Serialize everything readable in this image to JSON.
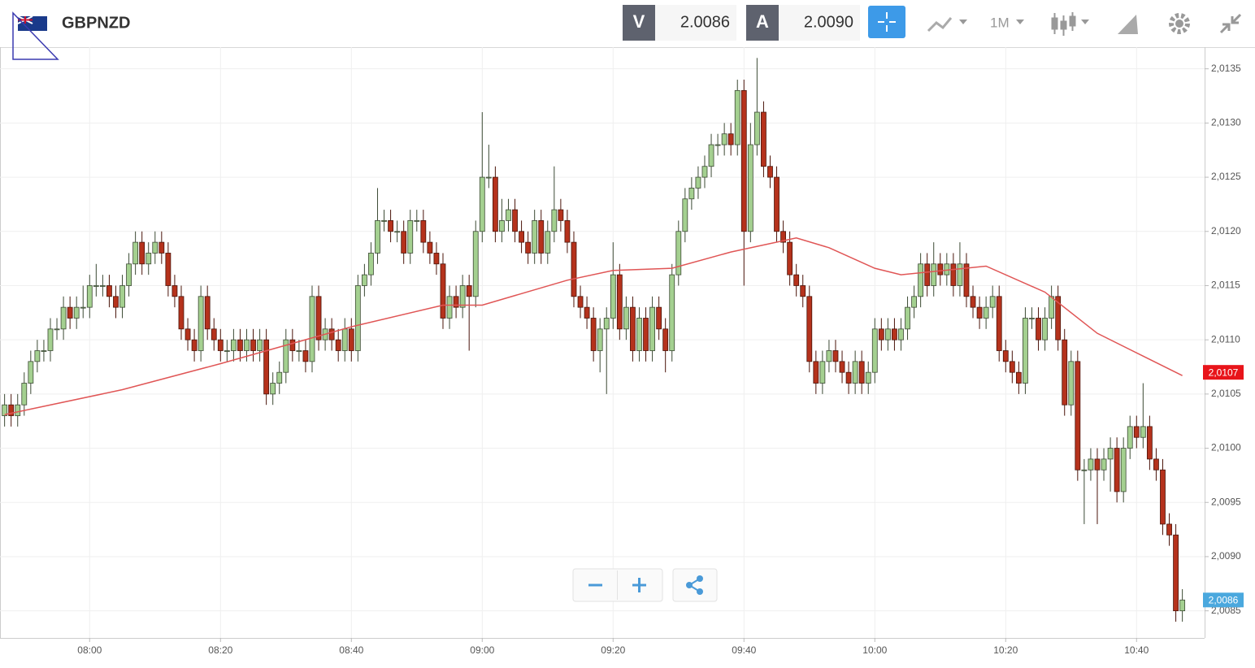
{
  "header": {
    "symbol": "GBPNZD",
    "sell": {
      "label": "V",
      "price": "2.0086"
    },
    "buy": {
      "label": "A",
      "price": "2.0090"
    },
    "timeframe": "1M"
  },
  "chart_data": {
    "type": "candlestick",
    "x": [
      467,
      468,
      469,
      470,
      471,
      472,
      473,
      474,
      475,
      476,
      477,
      478,
      479,
      480,
      481,
      482,
      483,
      484,
      485,
      486,
      487,
      488,
      489,
      490,
      491,
      492,
      493,
      494,
      495,
      496,
      497,
      498,
      499,
      500,
      501,
      502,
      503,
      504,
      505,
      506,
      507,
      508,
      509,
      510,
      511,
      512,
      513,
      514,
      515,
      516,
      517,
      518,
      519,
      520,
      521,
      522,
      523,
      524,
      525,
      526,
      527,
      528,
      529,
      530,
      531,
      532,
      533,
      534,
      535,
      536,
      537,
      538,
      539,
      540,
      541,
      542,
      543,
      544,
      545,
      546,
      547,
      548,
      549,
      550,
      551,
      552,
      553,
      554,
      555,
      556,
      557,
      558,
      559,
      560,
      561,
      562,
      563,
      564,
      565,
      566,
      567,
      568,
      569,
      570,
      571,
      572,
      573,
      574,
      575,
      576,
      577,
      578,
      579,
      580,
      581,
      582,
      583,
      584,
      585,
      586,
      587,
      588,
      589,
      590,
      591,
      592,
      593,
      594,
      595,
      596,
      597,
      598,
      599,
      600,
      601,
      602,
      603,
      604,
      605,
      606,
      607,
      608,
      609,
      610,
      611,
      612,
      613,
      614,
      615,
      616,
      617,
      618,
      619,
      620,
      621,
      622,
      623,
      624,
      625,
      626,
      627,
      628,
      629,
      630,
      631,
      632,
      633,
      634,
      635,
      636,
      637,
      638,
      639,
      640,
      641,
      642,
      643,
      644,
      645,
      646,
      647
    ],
    "open": [
      2.0103,
      2.0104,
      2.0103,
      2.0104,
      2.0106,
      2.0108,
      2.0109,
      2.0109,
      2.0111,
      2.0111,
      2.0113,
      2.0112,
      2.0113,
      2.0113,
      2.0115,
      2.0115,
      2.0115,
      2.0114,
      2.0113,
      2.0115,
      2.0117,
      2.0119,
      2.0117,
      2.0118,
      2.0119,
      2.0118,
      2.0115,
      2.0114,
      2.0111,
      2.011,
      2.0109,
      2.0114,
      2.0111,
      2.011,
      2.0109,
      2.0109,
      2.011,
      2.0109,
      2.011,
      2.0109,
      2.011,
      2.0105,
      2.0106,
      2.0107,
      2.011,
      2.0109,
      2.0109,
      2.0108,
      2.0114,
      2.011,
      2.0111,
      2.011,
      2.0109,
      2.0111,
      2.0109,
      2.0115,
      2.0116,
      2.0118,
      2.0121,
      2.0121,
      2.012,
      2.012,
      2.0118,
      2.0121,
      2.0121,
      2.0119,
      2.0118,
      2.0117,
      2.0112,
      2.0114,
      2.0113,
      2.0115,
      2.0114,
      2.012,
      2.0125,
      2.0125,
      2.012,
      2.0121,
      2.0122,
      2.012,
      2.0119,
      2.0118,
      2.0121,
      2.0118,
      2.012,
      2.0122,
      2.0121,
      2.0119,
      2.0114,
      2.0113,
      2.0112,
      2.0109,
      2.0111,
      2.0112,
      2.0116,
      2.0111,
      2.0113,
      2.0109,
      2.0112,
      2.0109,
      2.0113,
      2.0111,
      2.0109,
      2.0116,
      2.012,
      2.0123,
      2.0124,
      2.0125,
      2.0126,
      2.0128,
      2.0128,
      2.0129,
      2.0128,
      2.0133,
      2.012,
      2.0128,
      2.0131,
      2.0126,
      2.0125,
      2.012,
      2.0119,
      2.0116,
      2.0115,
      2.0114,
      2.0108,
      2.0106,
      2.0108,
      2.0109,
      2.0108,
      2.0107,
      2.0106,
      2.0108,
      2.0106,
      2.0107,
      2.0111,
      2.011,
      2.0111,
      2.011,
      2.0111,
      2.0113,
      2.0114,
      2.0117,
      2.0115,
      2.0117,
      2.0116,
      2.0117,
      2.0115,
      2.0117,
      2.0114,
      2.0113,
      2.0112,
      2.0113,
      2.0114,
      2.0109,
      2.0108,
      2.0107,
      2.0106,
      2.0112,
      2.0112,
      2.011,
      2.0112,
      2.0114,
      2.011,
      2.0104,
      2.0108,
      2.0098,
      2.0098,
      2.0099,
      2.0098,
      2.0099,
      2.01,
      2.0096,
      2.01,
      2.0102,
      2.0101,
      2.0102,
      2.0099,
      2.0098,
      2.0093,
      2.0092,
      2.0085
    ],
    "high": [
      2.0105,
      2.0105,
      2.0105,
      2.0107,
      2.0109,
      2.011,
      2.011,
      2.0112,
      2.0112,
      2.0114,
      2.0114,
      2.0114,
      2.0115,
      2.0116,
      2.0117,
      2.0116,
      2.0116,
      2.0115,
      2.0116,
      2.0118,
      2.012,
      2.012,
      2.0119,
      2.012,
      2.012,
      2.0119,
      2.0116,
      2.0115,
      2.0112,
      2.0111,
      2.0115,
      2.0115,
      2.0112,
      2.0111,
      2.011,
      2.0111,
      2.0111,
      2.0111,
      2.0111,
      2.0111,
      2.0111,
      2.0107,
      2.0108,
      2.0111,
      2.0111,
      2.011,
      2.011,
      2.0115,
      2.0115,
      2.0112,
      2.0112,
      2.0111,
      2.0112,
      2.0112,
      2.0116,
      2.0117,
      2.0119,
      2.0124,
      2.0122,
      2.0122,
      2.0121,
      2.0121,
      2.0122,
      2.0122,
      2.0122,
      2.012,
      2.0119,
      2.0118,
      2.0115,
      2.0115,
      2.0116,
      2.0116,
      2.0121,
      2.0131,
      2.0128,
      2.0126,
      2.0123,
      2.0123,
      2.0123,
      2.0121,
      2.012,
      2.0122,
      2.0122,
      2.0121,
      2.0126,
      2.0123,
      2.0122,
      2.012,
      2.0115,
      2.0114,
      2.0113,
      2.0112,
      2.0113,
      2.0119,
      2.0117,
      2.0114,
      2.0114,
      2.0113,
      2.0113,
      2.0114,
      2.0114,
      2.0112,
      2.0117,
      2.0121,
      2.0124,
      2.0125,
      2.0126,
      2.0127,
      2.0129,
      2.0129,
      2.013,
      2.013,
      2.0134,
      2.0134,
      2.013,
      2.0136,
      2.0132,
      2.0127,
      2.0126,
      2.0121,
      2.012,
      2.0117,
      2.0116,
      2.0115,
      2.0109,
      2.0109,
      2.011,
      2.011,
      2.0109,
      2.0108,
      2.0109,
      2.0109,
      2.0108,
      2.0112,
      2.0112,
      2.0112,
      2.0112,
      2.0112,
      2.0114,
      2.0115,
      2.0118,
      2.0118,
      2.0119,
      2.0118,
      2.0118,
      2.0118,
      2.0119,
      2.0118,
      2.0115,
      2.0114,
      2.0114,
      2.0115,
      2.0115,
      2.011,
      2.0109,
      2.0108,
      2.0113,
      2.0113,
      2.0113,
      2.0113,
      2.0115,
      2.0115,
      2.0111,
      2.0109,
      2.0109,
      2.0099,
      2.01,
      2.01,
      2.01,
      2.0101,
      2.0101,
      2.0101,
      2.0103,
      2.0103,
      2.0106,
      2.0103,
      2.01,
      2.0099,
      2.0094,
      2.0093,
      2.0087
    ],
    "low": [
      2.0102,
      2.0102,
      2.0102,
      2.0103,
      2.0105,
      2.0107,
      2.0108,
      2.0108,
      2.011,
      2.011,
      2.0111,
      2.0111,
      2.0112,
      2.0112,
      2.0114,
      2.0114,
      2.0113,
      2.0112,
      2.0112,
      2.0114,
      2.0116,
      2.0116,
      2.0116,
      2.0117,
      2.0117,
      2.0114,
      2.0113,
      2.011,
      2.0109,
      2.0108,
      2.0108,
      2.011,
      2.0109,
      2.0108,
      2.0108,
      2.0108,
      2.0108,
      2.0108,
      2.0108,
      2.0108,
      2.0104,
      2.0104,
      2.0105,
      2.0106,
      2.0108,
      2.0108,
      2.0107,
      2.0107,
      2.0109,
      2.0109,
      2.0109,
      2.0108,
      2.0108,
      2.0108,
      2.0108,
      2.0114,
      2.0115,
      2.0117,
      2.012,
      2.0119,
      2.0119,
      2.0117,
      2.0117,
      2.012,
      2.0118,
      2.0117,
      2.0116,
      2.0111,
      2.0111,
      2.0112,
      2.0112,
      2.0109,
      2.0113,
      2.0119,
      2.0124,
      2.0119,
      2.0119,
      2.012,
      2.0119,
      2.0118,
      2.0117,
      2.0117,
      2.0117,
      2.0117,
      2.0119,
      2.012,
      2.0118,
      2.0113,
      2.0112,
      2.0111,
      2.0108,
      2.0107,
      2.0105,
      2.0111,
      2.011,
      2.011,
      2.0108,
      2.0108,
      2.0108,
      2.0108,
      2.011,
      2.0107,
      2.0108,
      2.0115,
      2.0119,
      2.0122,
      2.0123,
      2.0124,
      2.0125,
      2.0127,
      2.0127,
      2.0127,
      2.0127,
      2.0115,
      2.0119,
      2.0127,
      2.0125,
      2.0124,
      2.0119,
      2.0118,
      2.0115,
      2.0114,
      2.0113,
      2.0107,
      2.0105,
      2.0105,
      2.0107,
      2.0107,
      2.0106,
      2.0105,
      2.0105,
      2.0105,
      2.0105,
      2.0106,
      2.0109,
      2.0109,
      2.0109,
      2.0109,
      2.011,
      2.0112,
      2.0113,
      2.0114,
      2.0114,
      2.0115,
      2.0115,
      2.0114,
      2.0114,
      2.0113,
      2.0112,
      2.0111,
      2.0111,
      2.0112,
      2.0108,
      2.0107,
      2.0106,
      2.0105,
      2.0105,
      2.0111,
      2.0109,
      2.0109,
      2.0111,
      2.0109,
      2.0103,
      2.0103,
      2.0097,
      2.0093,
      2.0097,
      2.0093,
      2.0097,
      2.0096,
      2.0095,
      2.0095,
      2.0099,
      2.01,
      2.01,
      2.0098,
      2.0097,
      2.0092,
      2.0091,
      2.0084,
      2.0084
    ],
    "close": [
      2.0104,
      2.0103,
      2.0104,
      2.0106,
      2.0108,
      2.0109,
      2.0109,
      2.0111,
      2.0111,
      2.0113,
      2.0112,
      2.0113,
      2.0113,
      2.0115,
      2.0115,
      2.0115,
      2.0114,
      2.0113,
      2.0115,
      2.0117,
      2.0119,
      2.0117,
      2.0118,
      2.0119,
      2.0118,
      2.0115,
      2.0114,
      2.0111,
      2.011,
      2.0109,
      2.0114,
      2.0111,
      2.011,
      2.0109,
      2.0109,
      2.011,
      2.0109,
      2.011,
      2.0109,
      2.011,
      2.0105,
      2.0106,
      2.0107,
      2.011,
      2.0109,
      2.0109,
      2.0108,
      2.0114,
      2.011,
      2.0111,
      2.011,
      2.0109,
      2.0111,
      2.0109,
      2.0115,
      2.0116,
      2.0118,
      2.0121,
      2.0121,
      2.012,
      2.012,
      2.0118,
      2.0121,
      2.0121,
      2.0119,
      2.0118,
      2.0117,
      2.0112,
      2.0114,
      2.0113,
      2.0115,
      2.0114,
      2.012,
      2.0125,
      2.0125,
      2.012,
      2.0121,
      2.0122,
      2.012,
      2.0119,
      2.0118,
      2.0121,
      2.0118,
      2.012,
      2.0122,
      2.0121,
      2.0119,
      2.0114,
      2.0113,
      2.0112,
      2.0109,
      2.0111,
      2.0112,
      2.0116,
      2.0111,
      2.0113,
      2.0109,
      2.0112,
      2.0109,
      2.0113,
      2.0111,
      2.0109,
      2.0116,
      2.012,
      2.0123,
      2.0124,
      2.0125,
      2.0126,
      2.0128,
      2.0128,
      2.0129,
      2.0128,
      2.0133,
      2.012,
      2.0128,
      2.0131,
      2.0126,
      2.0125,
      2.012,
      2.0119,
      2.0116,
      2.0115,
      2.0114,
      2.0108,
      2.0106,
      2.0108,
      2.0109,
      2.0108,
      2.0107,
      2.0106,
      2.0108,
      2.0106,
      2.0107,
      2.0111,
      2.011,
      2.0111,
      2.011,
      2.0111,
      2.0113,
      2.0114,
      2.0117,
      2.0115,
      2.0117,
      2.0116,
      2.0117,
      2.0115,
      2.0117,
      2.0114,
      2.0113,
      2.0112,
      2.0113,
      2.0114,
      2.0109,
      2.0108,
      2.0107,
      2.0106,
      2.0112,
      2.0112,
      2.011,
      2.0112,
      2.0114,
      2.011,
      2.0104,
      2.0108,
      2.0098,
      2.0098,
      2.0099,
      2.0098,
      2.0099,
      2.01,
      2.0096,
      2.01,
      2.0102,
      2.0101,
      2.0102,
      2.0099,
      2.0098,
      2.0093,
      2.0092,
      2.0085,
      2.0086
    ],
    "up_color": "#a4d090",
    "down_color": "#b5321c",
    "moving_average": {
      "color": "#e05555",
      "x": [
        467,
        485,
        500,
        520,
        534,
        540,
        553,
        560,
        569,
        578,
        588,
        593,
        600,
        604,
        617,
        626,
        634,
        641,
        647
      ],
      "values": [
        2.01031,
        2.01054,
        2.01078,
        2.01112,
        2.01132,
        2.01132,
        2.01155,
        2.01164,
        2.01166,
        2.01181,
        2.01194,
        2.01185,
        2.01166,
        2.0116,
        2.01168,
        2.01144,
        2.01106,
        2.01085,
        2.01067
      ]
    },
    "price_tags": [
      {
        "value": 2.0107,
        "label": "2,0107",
        "color": "#e8141a"
      },
      {
        "value": 2.0086,
        "label": "2,0086",
        "color": "#4aa8de"
      }
    ],
    "xlim": [
      466.3,
      650.4
    ],
    "xticks": [
      {
        "value": 480,
        "label": "08:00"
      },
      {
        "value": 500,
        "label": "08:20"
      },
      {
        "value": 520,
        "label": "08:40"
      },
      {
        "value": 540,
        "label": "09:00"
      },
      {
        "value": 560,
        "label": "09:20"
      },
      {
        "value": 580,
        "label": "09:40"
      },
      {
        "value": 600,
        "label": "10:00"
      },
      {
        "value": 620,
        "label": "10:20"
      },
      {
        "value": 640,
        "label": "10:40"
      }
    ],
    "ylim": [
      2.00825,
      2.0137
    ],
    "yticks": [
      {
        "value": 2.0085,
        "label": "2,0085"
      },
      {
        "value": 2.009,
        "label": "2,0090"
      },
      {
        "value": 2.0095,
        "label": "2,0095"
      },
      {
        "value": 2.01,
        "label": "2,0100"
      },
      {
        "value": 2.0105,
        "label": "2,0105"
      },
      {
        "value": 2.011,
        "label": "2,0110"
      },
      {
        "value": 2.0115,
        "label": "2,0115"
      },
      {
        "value": 2.012,
        "label": "2,0120"
      },
      {
        "value": 2.0125,
        "label": "2,0125"
      },
      {
        "value": 2.013,
        "label": "2,0130"
      },
      {
        "value": 2.0135,
        "label": "2,0135"
      }
    ],
    "grid": true
  }
}
